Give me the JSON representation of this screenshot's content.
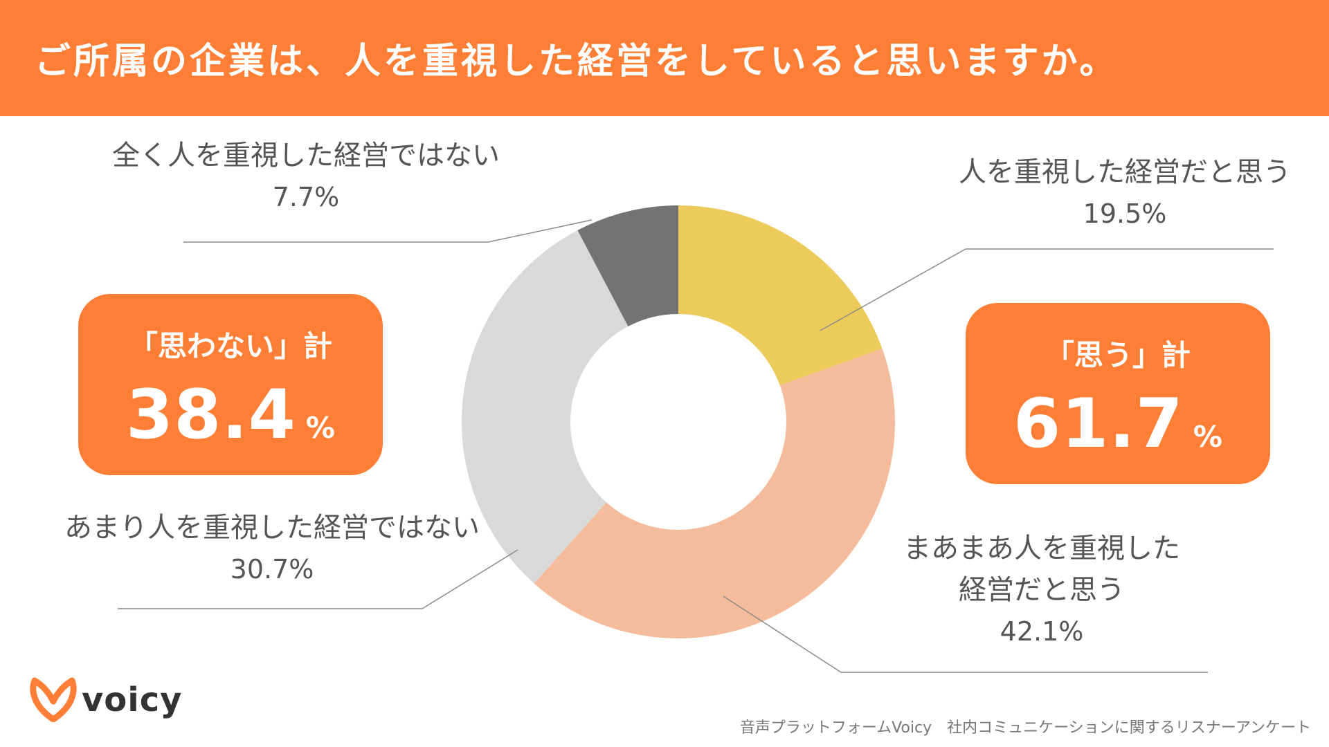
{
  "title": "ご所属の企業は、人を重視した経営をしていると思いますか。",
  "chart_data": {
    "type": "pie",
    "categories": [
      "人を重視した経営だと思う",
      "まあまあ人を重視した経営だと思う",
      "あまり人を重視した経営ではない",
      "全く人を重視した経営ではない"
    ],
    "values": [
      19.5,
      42.1,
      30.7,
      7.7
    ],
    "value_labels": [
      "19.5%",
      "42.1%",
      "30.7%",
      "7.7%"
    ],
    "label_lines": [
      [
        "人を重視した経営だと思う"
      ],
      [
        "まあまあ人を重視した",
        "経営だと思う"
      ],
      [
        "あまり人を重視した経営ではない"
      ],
      [
        "全く人を重視した経営ではない"
      ]
    ],
    "colors": [
      "#EDCB5A",
      "#F5BC9C",
      "#D9D9D9",
      "#737373"
    ],
    "donut": true
  },
  "summaries": {
    "negative": {
      "label": "「思わない」計",
      "value": "38.4",
      "unit": "%"
    },
    "positive": {
      "label": "「思う」計",
      "value": "61.7",
      "unit": "%"
    }
  },
  "brand": {
    "name": "voicy",
    "color": "#FF7E35"
  },
  "footer": "音声プラットフォームVoicy　社内コミュニケーションに関するリスナーアンケート"
}
